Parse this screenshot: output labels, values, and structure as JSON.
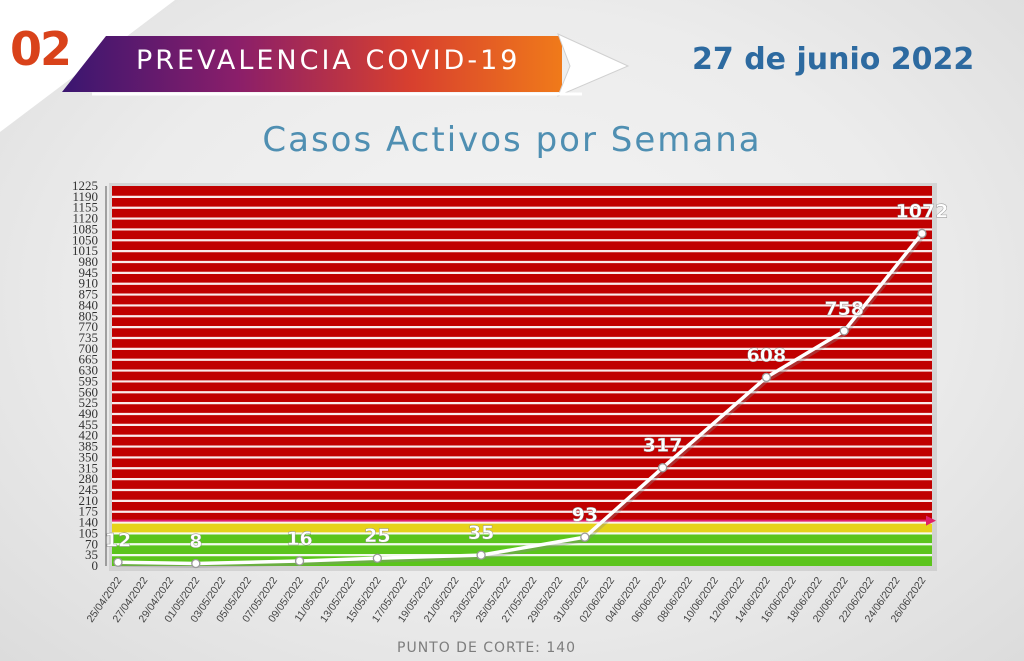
{
  "header": {
    "badge_number": "02",
    "banner_title": "PREVALENCIA COVID-19",
    "date": "27 de junio 2022"
  },
  "colors": {
    "badge": "#d9421a",
    "date": "#2d6aa0",
    "title": "#4f8fb2",
    "zone_red": "#c00000",
    "zone_yellow": "#e6d21a",
    "zone_green": "#5bc41c",
    "cutoff_line": "#e0206a",
    "series_line": "#ffffff"
  },
  "chart_data": {
    "type": "line",
    "title": "Casos Activos por Semana",
    "xlabel": "",
    "ylabel": "",
    "ylim": [
      0,
      1225
    ],
    "yticks": [
      0,
      35,
      70,
      105,
      140,
      175,
      210,
      245,
      280,
      315,
      350,
      385,
      420,
      455,
      490,
      525,
      560,
      595,
      630,
      665,
      700,
      735,
      770,
      805,
      840,
      875,
      910,
      945,
      980,
      1015,
      1050,
      1085,
      1120,
      1155,
      1190,
      1225
    ],
    "x_tick_labels": [
      "25/04/2022",
      "27/04/2022",
      "29/04/2022",
      "01/05/2022",
      "03/05/2022",
      "05/05/2022",
      "07/05/2022",
      "09/05/2022",
      "11/05/2022",
      "13/05/2022",
      "15/05/2022",
      "17/05/2022",
      "19/05/2022",
      "21/05/2022",
      "23/05/2022",
      "25/05/2022",
      "27/05/2022",
      "29/05/2022",
      "31/05/2022",
      "02/06/2022",
      "04/06/2022",
      "06/06/2022",
      "08/06/2022",
      "10/06/2022",
      "12/06/2022",
      "14/06/2022",
      "16/06/2022",
      "18/06/2022",
      "20/06/2022",
      "22/06/2022",
      "24/06/2022",
      "26/06/2022"
    ],
    "series": [
      {
        "x": [
          "25/04/2022",
          "01/05/2022",
          "09/05/2022",
          "15/05/2022",
          "23/05/2022",
          "31/05/2022",
          "06/06/2022",
          "14/06/2022",
          "20/06/2022",
          "26/06/2022"
        ],
        "values": [
          12,
          8,
          16,
          25,
          35,
          93,
          317,
          608,
          758,
          1072
        ]
      }
    ],
    "zones": [
      {
        "color": "green",
        "from": 0,
        "to": 105
      },
      {
        "color": "yellow",
        "from": 105,
        "to": 140
      },
      {
        "color": "red",
        "from": 140,
        "to": 1225
      }
    ],
    "cutoff": {
      "value": 140,
      "label": "PUNTO DE CORTE: 140"
    },
    "grid": true
  }
}
